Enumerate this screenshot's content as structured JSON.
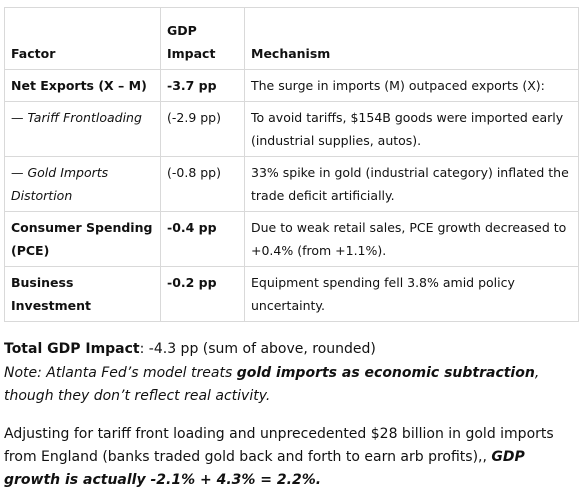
{
  "table": {
    "header": [
      "Factor",
      "GDP Impact",
      "Mechanism"
    ],
    "rows": [
      [
        "Net Exports (X – M)",
        "-3.7 pp",
        "The surge in imports (M) outpaced exports (X):"
      ],
      [
        "— Tariff Frontloading",
        "(-2.9 pp)",
        "To avoid tariffs, $154B goods were imported early (industrial supplies, autos)."
      ],
      [
        "— Gold Imports Distortion",
        "(-0.8 pp)",
        "33% spike in gold (industrial category) inflated the trade deficit artificially."
      ],
      [
        "Consumer Spending (PCE)",
        "-0.4 pp",
        "Due to weak retail sales, PCE growth decreased to +0.4% (from +1.1%)."
      ],
      [
        "Business Investment",
        "-0.2 pp",
        "Equipment spending fell 3.8% amid policy uncertainty."
      ]
    ]
  },
  "total": {
    "label": "Total GDP Impact",
    "text": ": -4.3 pp (sum of above, rounded)"
  },
  "note": {
    "before": "Note: Atlanta Fed’s model treats ",
    "emphasis": "gold imports as economic subtraction",
    "after": ", though they don’t reflect real activity."
  },
  "paragraph": {
    "text": "Adjusting for tariff front loading and unprecedented $28 billion in gold imports from England (banks traded gold back and forth to earn arb profits),, ",
    "emphasis": "GDP growth is actually -2.1% + 4.3% = 2.2%."
  }
}
